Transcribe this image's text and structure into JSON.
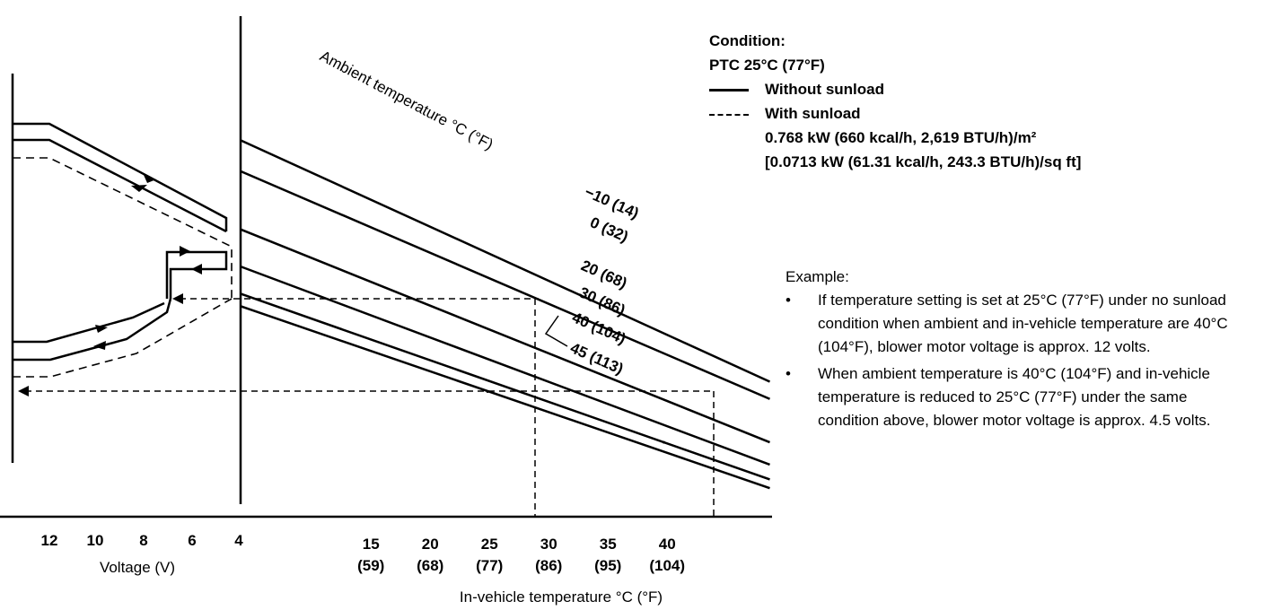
{
  "condition": {
    "title": "Condition:",
    "ptc": "PTC 25°C (77°F)",
    "solid_label": "Without sunload",
    "dashed_label": "With sunload",
    "sunload_metric": "0.768 kW (660 kcal/h, 2,619 BTU/h)/m²",
    "sunload_imperial": "[0.0713 kW (61.31 kcal/h, 243.3 BTU/h)/sq ft]"
  },
  "example": {
    "title": "Example:",
    "bullet_char": "•",
    "items": [
      "If temperature setting is set at 25°C (77°F) under no sunload condition when ambient and in-vehicle temperature are 40°C (104°F), blower motor voltage is approx. 12 volts.",
      "When ambient temperature is 40°C (104°F) and in-vehicle temperature is reduced to 25°C (77°F) under the same condition above, blower motor voltage is approx. 4.5 volts."
    ]
  },
  "chart_data": [
    {
      "type": "line",
      "name": "ambient-lines",
      "xlabel": "In-vehicle temperature °C (°F)",
      "ylabel": "",
      "x_ticks": [
        {
          "value": 15,
          "label": "15",
          "sub": "(59)"
        },
        {
          "value": 20,
          "label": "20",
          "sub": "(68)"
        },
        {
          "value": 25,
          "label": "25",
          "sub": "(77)"
        },
        {
          "value": 30,
          "label": "30",
          "sub": "(86)"
        },
        {
          "value": 35,
          "label": "35",
          "sub": "(95)"
        },
        {
          "value": 40,
          "label": "40",
          "sub": "(104)"
        }
      ],
      "curve_title": "Ambient temperature °C (°F)",
      "series": [
        {
          "name": "-10 (14)",
          "points": [
            [
              0,
              24.8
            ],
            [
              45,
              5.3
            ]
          ]
        },
        {
          "name": "0 (32)",
          "points": [
            [
              0,
              22.3
            ],
            [
              45,
              3.9
            ]
          ]
        },
        {
          "name": "20 (68)",
          "points": [
            [
              0,
              17.6
            ],
            [
              45,
              0.4
            ]
          ]
        },
        {
          "name": "30 (86)",
          "points": [
            [
              0,
              14.6
            ],
            [
              45,
              -1.4
            ]
          ]
        },
        {
          "name": "40 (104)",
          "points": [
            [
              0,
              12.4
            ],
            [
              45,
              -2.6
            ]
          ]
        },
        {
          "name": "45 (113)",
          "points": [
            [
              0,
              11.4
            ],
            [
              45,
              -3.3
            ]
          ]
        }
      ],
      "example_points": [
        {
          "x": 25,
          "y": 4.5
        },
        {
          "x": 40,
          "y": 0.4
        }
      ]
    },
    {
      "type": "line",
      "name": "blower-voltage-hysteresis",
      "xlabel": "Voltage (V)",
      "x_ticks": [
        "12",
        "10",
        "8",
        "6",
        "4"
      ],
      "series": [
        {
          "name": "Without sunload",
          "style": "solid"
        },
        {
          "name": "With sunload",
          "style": "dashed"
        }
      ]
    }
  ]
}
